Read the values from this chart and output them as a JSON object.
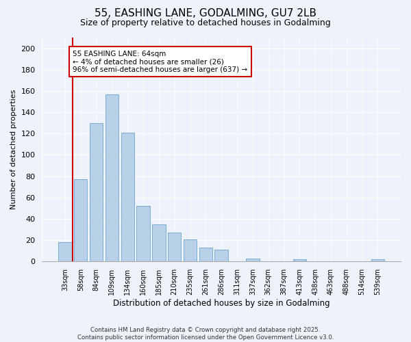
{
  "title": "55, EASHING LANE, GODALMING, GU7 2LB",
  "subtitle": "Size of property relative to detached houses in Godalming",
  "xlabel": "Distribution of detached houses by size in Godalming",
  "ylabel": "Number of detached properties",
  "bar_labels": [
    "33sqm",
    "58sqm",
    "84sqm",
    "109sqm",
    "134sqm",
    "160sqm",
    "185sqm",
    "210sqm",
    "235sqm",
    "261sqm",
    "286sqm",
    "311sqm",
    "337sqm",
    "362sqm",
    "387sqm",
    "413sqm",
    "438sqm",
    "463sqm",
    "488sqm",
    "514sqm",
    "539sqm"
  ],
  "bar_values": [
    18,
    77,
    130,
    157,
    121,
    52,
    35,
    27,
    21,
    13,
    11,
    0,
    3,
    0,
    0,
    2,
    0,
    0,
    0,
    0,
    2
  ],
  "bar_color": "#b8cfe8",
  "bar_edge_color": "#7aadd4",
  "vline_color": "#cc0000",
  "annotation_title": "55 EASHING LANE: 64sqm",
  "annotation_line1": "← 4% of detached houses are smaller (26)",
  "annotation_line2": "96% of semi-detached houses are larger (637) →",
  "annotation_box_color": "#ffffff",
  "annotation_box_edge_color": "#cc0000",
  "ylim": [
    0,
    210
  ],
  "yticks": [
    0,
    20,
    40,
    60,
    80,
    100,
    120,
    140,
    160,
    180,
    200
  ],
  "footer_line1": "Contains HM Land Registry data © Crown copyright and database right 2025.",
  "footer_line2": "Contains public sector information licensed under the Open Government Licence v3.0.",
  "bg_color": "#eef2fa"
}
